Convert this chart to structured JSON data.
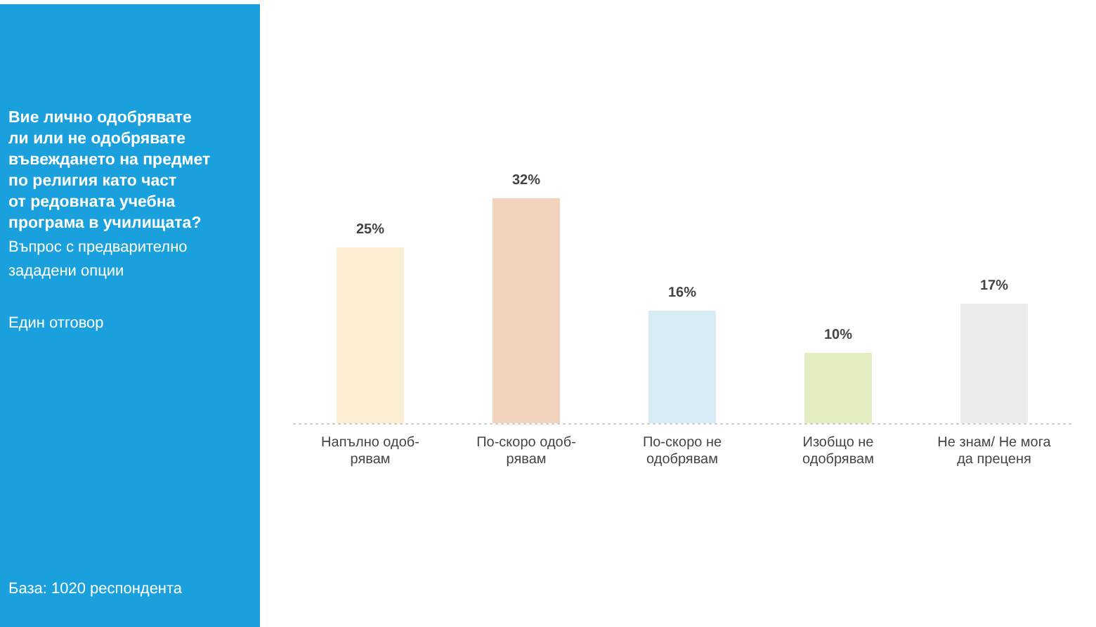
{
  "chart_data": {
    "type": "bar",
    "title": "Вие лично одобрявате ли или не одобрявате въвеждането на предмет по религия като част от редовната учебна програма в училищата?",
    "subtitle": "Въпрос с предварително зададени опции",
    "annotations": [
      "Един отговор",
      "База: 1020 респондента"
    ],
    "categories": [
      "Напълно одоб-\nрявам",
      "По-скоро одоб-\nрявам",
      "По-скоро не\nодобрявам",
      "Изобщо не\nодобрявам",
      "Не знам/ Не мога\nда преценя"
    ],
    "values": [
      25,
      32,
      16,
      10,
      17
    ],
    "value_labels": [
      "25%",
      "32%",
      "16%",
      "10%",
      "17%"
    ],
    "colors": [
      "#fbeed3",
      "#f2d3bd",
      "#d7ebf5",
      "#e2edc2",
      "#ececec"
    ],
    "tick_labels": "x"
  }
}
